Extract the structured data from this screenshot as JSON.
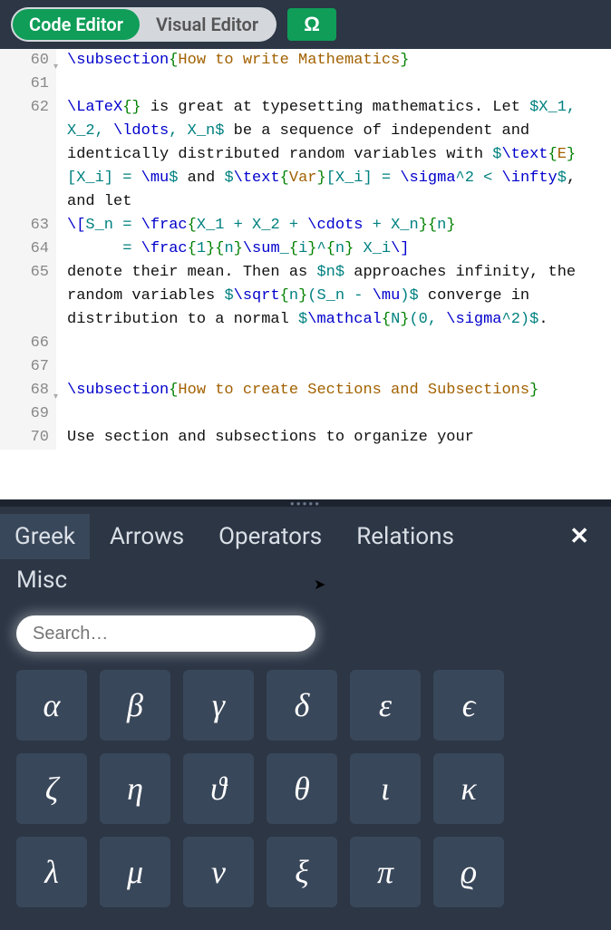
{
  "toolbar": {
    "code_editor_label": "Code Editor",
    "visual_editor_label": "Visual Editor",
    "omega_label": "Ω"
  },
  "editor": {
    "lines": [
      {
        "num": "60",
        "fold": true,
        "tokens": [
          {
            "t": "\\subsection",
            "c": "tok-cmd"
          },
          {
            "t": "{",
            "c": "tok-brace"
          },
          {
            "t": "How to write Mathematics",
            "c": "tok-str"
          },
          {
            "t": "}",
            "c": "tok-brace"
          }
        ]
      },
      {
        "num": "61",
        "tokens": []
      },
      {
        "num": "62",
        "tokens": [
          {
            "t": "\\LaTeX",
            "c": "tok-cmd"
          },
          {
            "t": "{}",
            "c": "tok-brace"
          },
          {
            "t": " is great at typesetting mathematics. Let ",
            "c": "tok-text"
          },
          {
            "t": "$X_1, X_2, ",
            "c": "tok-math"
          },
          {
            "t": "\\ldots",
            "c": "tok-cmd"
          },
          {
            "t": ", X_n$",
            "c": "tok-math"
          },
          {
            "t": " be a sequence of independent and identically distributed random variables with ",
            "c": "tok-text"
          },
          {
            "t": "$",
            "c": "tok-math"
          },
          {
            "t": "\\text",
            "c": "tok-cmd"
          },
          {
            "t": "{",
            "c": "tok-brace"
          },
          {
            "t": "E",
            "c": "tok-str"
          },
          {
            "t": "}",
            "c": "tok-brace"
          },
          {
            "t": "[X_i] = ",
            "c": "tok-math"
          },
          {
            "t": "\\mu",
            "c": "tok-cmd"
          },
          {
            "t": "$",
            "c": "tok-math"
          },
          {
            "t": " and ",
            "c": "tok-text"
          },
          {
            "t": "$",
            "c": "tok-math"
          },
          {
            "t": "\\text",
            "c": "tok-cmd"
          },
          {
            "t": "{",
            "c": "tok-brace"
          },
          {
            "t": "Var",
            "c": "tok-str"
          },
          {
            "t": "}",
            "c": "tok-brace"
          },
          {
            "t": "[X_i] = ",
            "c": "tok-math"
          },
          {
            "t": "\\sigma",
            "c": "tok-cmd"
          },
          {
            "t": "^2 < ",
            "c": "tok-math"
          },
          {
            "t": "\\infty",
            "c": "tok-cmd"
          },
          {
            "t": "$",
            "c": "tok-math"
          },
          {
            "t": ", and let",
            "c": "tok-text"
          }
        ]
      },
      {
        "num": "63",
        "tokens": [
          {
            "t": "\\[",
            "c": "tok-cmd"
          },
          {
            "t": "S_n = ",
            "c": "tok-math"
          },
          {
            "t": "\\frac",
            "c": "tok-cmd"
          },
          {
            "t": "{",
            "c": "tok-brace"
          },
          {
            "t": "X_1 + X_2 + ",
            "c": "tok-math"
          },
          {
            "t": "\\cdots",
            "c": "tok-cmd"
          },
          {
            "t": " + X_n",
            "c": "tok-math"
          },
          {
            "t": "}{",
            "c": "tok-brace"
          },
          {
            "t": "n",
            "c": "tok-math"
          },
          {
            "t": "}",
            "c": "tok-brace"
          }
        ]
      },
      {
        "num": "64",
        "tokens": [
          {
            "t": "      = ",
            "c": "tok-math"
          },
          {
            "t": "\\frac",
            "c": "tok-cmd"
          },
          {
            "t": "{",
            "c": "tok-brace"
          },
          {
            "t": "1",
            "c": "tok-math"
          },
          {
            "t": "}{",
            "c": "tok-brace"
          },
          {
            "t": "n",
            "c": "tok-math"
          },
          {
            "t": "}",
            "c": "tok-brace"
          },
          {
            "t": "\\sum",
            "c": "tok-cmd"
          },
          {
            "t": "_",
            "c": "tok-math"
          },
          {
            "t": "{",
            "c": "tok-brace"
          },
          {
            "t": "i",
            "c": "tok-math"
          },
          {
            "t": "}",
            "c": "tok-brace"
          },
          {
            "t": "^",
            "c": "tok-math"
          },
          {
            "t": "{",
            "c": "tok-brace"
          },
          {
            "t": "n",
            "c": "tok-math"
          },
          {
            "t": "}",
            "c": "tok-brace"
          },
          {
            "t": " X_i",
            "c": "tok-math"
          },
          {
            "t": "\\]",
            "c": "tok-cmd"
          }
        ]
      },
      {
        "num": "65",
        "tokens": [
          {
            "t": "denote their mean. Then as ",
            "c": "tok-text"
          },
          {
            "t": "$n$",
            "c": "tok-math"
          },
          {
            "t": " approaches infinity, the random variables ",
            "c": "tok-text"
          },
          {
            "t": "$",
            "c": "tok-math"
          },
          {
            "t": "\\sqrt",
            "c": "tok-cmd"
          },
          {
            "t": "{",
            "c": "tok-brace"
          },
          {
            "t": "n",
            "c": "tok-math"
          },
          {
            "t": "}",
            "c": "tok-brace"
          },
          {
            "t": "(S_n - ",
            "c": "tok-math"
          },
          {
            "t": "\\mu",
            "c": "tok-cmd"
          },
          {
            "t": ")$",
            "c": "tok-math"
          },
          {
            "t": " converge in distribution to a normal ",
            "c": "tok-text"
          },
          {
            "t": "$",
            "c": "tok-math"
          },
          {
            "t": "\\mathcal",
            "c": "tok-cmd"
          },
          {
            "t": "{",
            "c": "tok-brace"
          },
          {
            "t": "N",
            "c": "tok-math"
          },
          {
            "t": "}",
            "c": "tok-brace"
          },
          {
            "t": "(0, ",
            "c": "tok-math"
          },
          {
            "t": "\\sigma",
            "c": "tok-cmd"
          },
          {
            "t": "^2)$",
            "c": "tok-math"
          },
          {
            "t": ".",
            "c": "tok-text"
          }
        ]
      },
      {
        "num": "66",
        "tokens": []
      },
      {
        "num": "67",
        "tokens": []
      },
      {
        "num": "68",
        "fold": true,
        "tokens": [
          {
            "t": "\\subsection",
            "c": "tok-cmd"
          },
          {
            "t": "{",
            "c": "tok-brace"
          },
          {
            "t": "How to create Sections and Subsections",
            "c": "tok-str"
          },
          {
            "t": "}",
            "c": "tok-brace"
          }
        ]
      },
      {
        "num": "69",
        "tokens": []
      },
      {
        "num": "70",
        "tokens": [
          {
            "t": "Use section and subsections to organize your",
            "c": "tok-text"
          }
        ]
      }
    ]
  },
  "symbol_panel": {
    "tabs": [
      "Greek",
      "Arrows",
      "Operators",
      "Relations"
    ],
    "tabs_row2": [
      "Misc"
    ],
    "active_tab": "Greek",
    "search_placeholder": "Search…",
    "symbols": [
      {
        "glyph": "α",
        "name": "alpha"
      },
      {
        "glyph": "β",
        "name": "beta"
      },
      {
        "glyph": "γ",
        "name": "gamma"
      },
      {
        "glyph": "δ",
        "name": "delta"
      },
      {
        "glyph": "ε",
        "name": "varepsilon"
      },
      {
        "glyph": "ϵ",
        "name": "epsilon"
      },
      {
        "glyph": "ζ",
        "name": "zeta"
      },
      {
        "glyph": "η",
        "name": "eta"
      },
      {
        "glyph": "ϑ",
        "name": "vartheta"
      },
      {
        "glyph": "θ",
        "name": "theta"
      },
      {
        "glyph": "ι",
        "name": "iota"
      },
      {
        "glyph": "κ",
        "name": "kappa"
      },
      {
        "glyph": "λ",
        "name": "lambda"
      },
      {
        "glyph": "μ",
        "name": "mu"
      },
      {
        "glyph": "ν",
        "name": "nu"
      },
      {
        "glyph": "ξ",
        "name": "xi"
      },
      {
        "glyph": "π",
        "name": "pi"
      },
      {
        "glyph": "ϱ",
        "name": "varrho"
      }
    ]
  },
  "colors": {
    "bg_dark": "#2c3645",
    "bg_cell": "#39475a",
    "green": "#0f9d58",
    "tok_cmd": "#0000cc",
    "tok_brace": "#008000",
    "tok_math": "#008080",
    "tok_str": "#a26100"
  }
}
